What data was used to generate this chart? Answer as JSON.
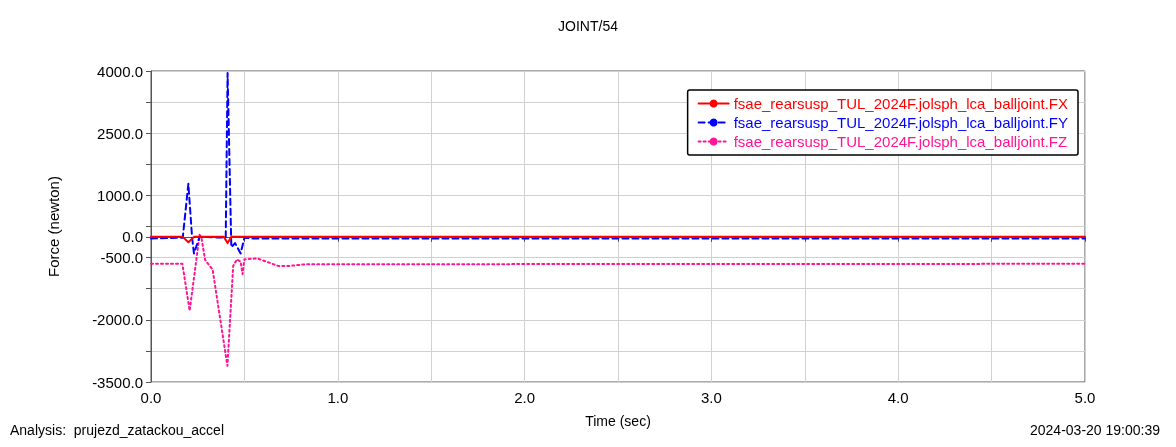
{
  "chart_data": {
    "type": "line",
    "title": "JOINT/54",
    "xlabel": "Time (sec)",
    "ylabel": "Force (newton)",
    "annotations": [
      "Analysis:  prujezd_zatackou_accel",
      "2024-03-20 19:00:39"
    ],
    "xlim": [
      0,
      5
    ],
    "ylim": [
      -3500,
      4000
    ],
    "xticks": [
      {
        "value": 0,
        "label": "0.0"
      },
      {
        "value": 0.5,
        "label": null
      },
      {
        "value": 1,
        "label": "1.0"
      },
      {
        "value": 1.5,
        "label": null
      },
      {
        "value": 2,
        "label": "2.0"
      },
      {
        "value": 2.5,
        "label": null
      },
      {
        "value": 3,
        "label": "3.0"
      },
      {
        "value": 3.5,
        "label": null
      },
      {
        "value": 4,
        "label": "4.0"
      },
      {
        "value": 4.5,
        "label": null
      },
      {
        "value": 5,
        "label": "5.0"
      }
    ],
    "yticks": [
      {
        "value": -3500,
        "label": "-3500.0"
      },
      {
        "value": -2750,
        "label": null
      },
      {
        "value": -2000,
        "label": "-2000.0"
      },
      {
        "value": -1250,
        "label": null
      },
      {
        "value": -500,
        "label": "-500.0"
      },
      {
        "value": 0,
        "label": "0.0"
      },
      {
        "value": 250,
        "label": null
      },
      {
        "value": 1000,
        "label": "1000.0"
      },
      {
        "value": 1750,
        "label": null
      },
      {
        "value": 2500,
        "label": "2500.0"
      },
      {
        "value": 3250,
        "label": null
      },
      {
        "value": 4000,
        "label": "4000.0"
      }
    ],
    "grid": true,
    "legend": "top right",
    "marker": "none",
    "series": [
      {
        "name": "fsae_rearsusp_TUL_2024F.jolsph_lca_balljoint.FX",
        "color": "#ff0000",
        "line_style": "solid",
        "x": [
          0,
          0.17,
          0.2,
          0.23,
          0.39,
          0.41,
          0.43,
          5
        ],
        "values": [
          0,
          0,
          -130,
          0,
          0,
          -150,
          0,
          0
        ]
      },
      {
        "name": "fsae_rearsusp_TUL_2024F.jolsph_lca_balljoint.FY",
        "color": "#0000ff",
        "line_style": "dashed",
        "x": [
          0,
          0.17,
          0.2,
          0.22,
          0.23,
          0.26,
          0.4,
          0.41,
          0.43,
          0.45,
          0.48,
          0.5,
          0.55,
          5
        ],
        "values": [
          -40,
          -20,
          1280,
          -20,
          -400,
          0,
          -20,
          3950,
          -250,
          -150,
          -400,
          -20,
          -40,
          -40
        ]
      },
      {
        "name": "fsae_rearsusp_TUL_2024F.jolsph_lca_balljoint.FZ",
        "color": "#ff1493",
        "line_style": "dotted",
        "x": [
          0,
          0.168,
          0.207,
          0.26,
          0.27,
          0.29,
          0.33,
          0.409,
          0.44,
          0.46,
          0.48,
          0.49,
          0.5,
          0.57,
          0.68,
          0.74,
          0.83,
          5
        ],
        "values": [
          -650,
          -650,
          -1780,
          50,
          -20,
          -560,
          -790,
          -3110,
          -700,
          -540,
          -600,
          -900,
          -540,
          -520,
          -700,
          -700,
          -660,
          -650
        ]
      }
    ]
  }
}
